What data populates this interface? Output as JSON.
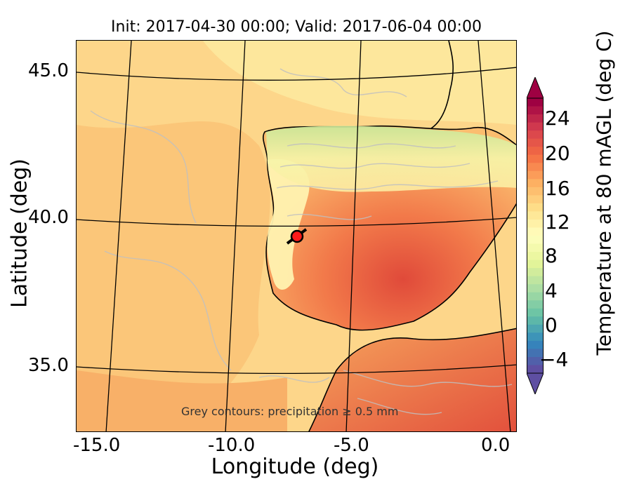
{
  "title": "Init: 2017-04-30 00:00; Valid: 2017-06-04 00:00",
  "xlabel": "Longitude (deg)",
  "ylabel": "Latitude (deg)",
  "x_ticks": [
    "-15.0",
    "-10.0",
    "-5.0",
    "0.0"
  ],
  "y_ticks": [
    "45.0",
    "40.0",
    "35.0"
  ],
  "colorbar": {
    "label": "Temperature at 80 mAGL (deg C)",
    "ticks": [
      "24",
      "20",
      "16",
      "12",
      "8",
      "4",
      "0",
      "−4"
    ],
    "range": [
      -7,
      27
    ],
    "colormap": "Spectral_r"
  },
  "annotation": "Grey contours: precipitation ≥ 0.5 mm",
  "marker": {
    "lon": -7.6,
    "lat": 39.3,
    "color": "#ff1a1a"
  }
}
